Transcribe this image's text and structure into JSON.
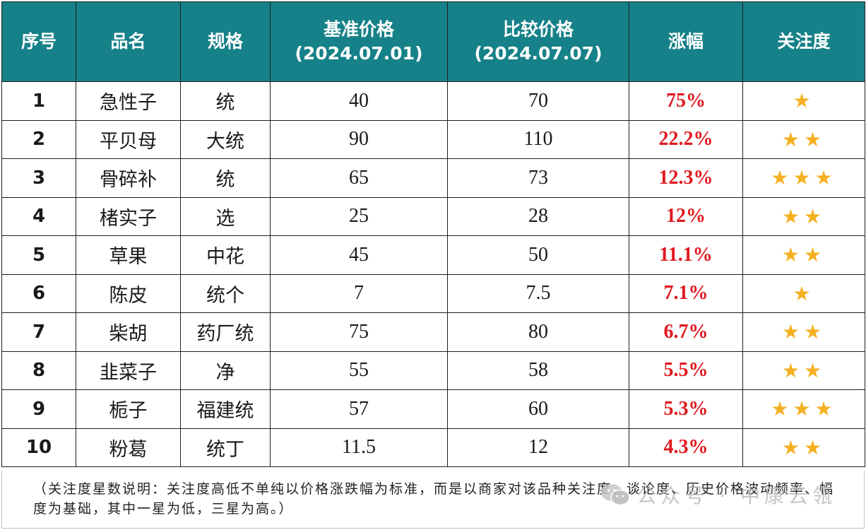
{
  "table": {
    "headers": [
      [
        "序号"
      ],
      [
        "品名"
      ],
      [
        "规格"
      ],
      [
        "基准价格",
        "(2024.07.01)"
      ],
      [
        "比较价格",
        "(2024.07.07)"
      ],
      [
        "涨幅"
      ],
      [
        "关注度"
      ]
    ],
    "rows": [
      {
        "index": "1",
        "name": "急性子",
        "spec": "统",
        "base_price": "40",
        "compare_price": "70",
        "change": "75%",
        "stars": 1
      },
      {
        "index": "2",
        "name": "平贝母",
        "spec": "大统",
        "base_price": "90",
        "compare_price": "110",
        "change": "22.2%",
        "stars": 2
      },
      {
        "index": "3",
        "name": "骨碎补",
        "spec": "统",
        "base_price": "65",
        "compare_price": "73",
        "change": "12.3%",
        "stars": 3
      },
      {
        "index": "4",
        "name": "楮实子",
        "spec": "选",
        "base_price": "25",
        "compare_price": "28",
        "change": "12%",
        "stars": 2
      },
      {
        "index": "5",
        "name": "草果",
        "spec": "中花",
        "base_price": "45",
        "compare_price": "50",
        "change": "11.1%",
        "stars": 2
      },
      {
        "index": "6",
        "name": "陈皮",
        "spec": "统个",
        "base_price": "7",
        "compare_price": "7.5",
        "change": "7.1%",
        "stars": 1
      },
      {
        "index": "7",
        "name": "柴胡",
        "spec": "药厂统",
        "base_price": "75",
        "compare_price": "80",
        "change": "6.7%",
        "stars": 2
      },
      {
        "index": "8",
        "name": "韭菜子",
        "spec": "净",
        "base_price": "55",
        "compare_price": "58",
        "change": "5.5%",
        "stars": 2
      },
      {
        "index": "9",
        "name": "栀子",
        "spec": "福建统",
        "base_price": "57",
        "compare_price": "60",
        "change": "5.3%",
        "stars": 3
      },
      {
        "index": "10",
        "name": "粉葛",
        "spec": "统丁",
        "base_price": "11.5",
        "compare_price": "12",
        "change": "4.3%",
        "stars": 2
      }
    ]
  },
  "note": "（关注度星数说明：关注度高低不单纯以价格涨跌幅为标准，而是以商家对该品种关注度、谈论度、历史价格波动频率、幅度为基础，其中一星为低，三星为高。）",
  "watermark": {
    "text": "公众号 · 中康云瓴",
    "icon": "wechat-icon"
  },
  "colors": {
    "header_bg": "#168188",
    "header_text": "#ffffff",
    "change_text": "#e0191f",
    "star": "#f5b021",
    "border": "#1f1f1f"
  },
  "star_glyph": "★"
}
